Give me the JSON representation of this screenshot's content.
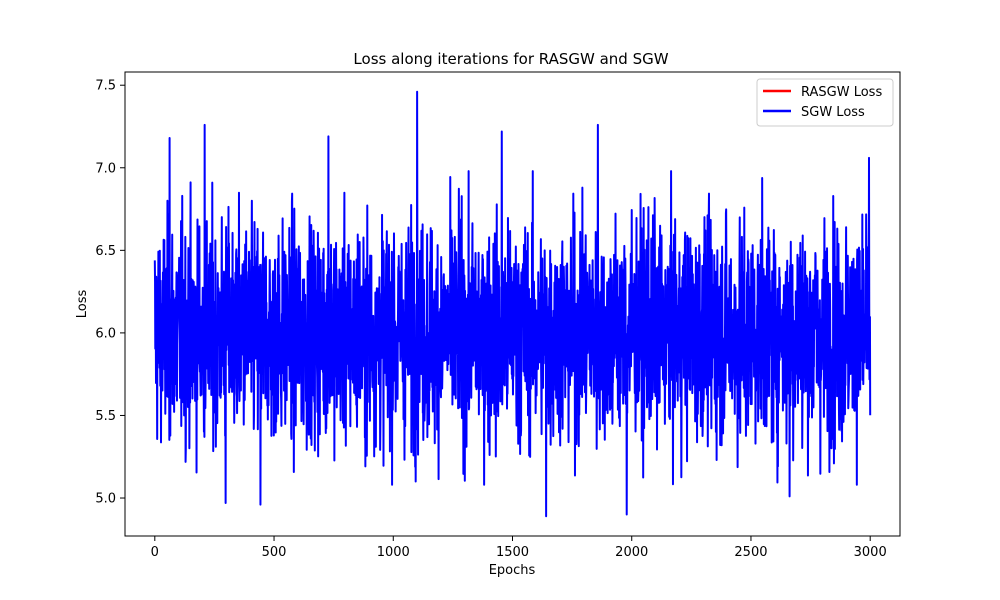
{
  "chart_data": {
    "type": "line",
    "title": "Loss along iterations for RASGW and SGW",
    "xlabel": "Epochs",
    "ylabel": "Loss",
    "xlim": [
      -125,
      3125
    ],
    "ylim": [
      4.77,
      7.58
    ],
    "xticks": [
      0,
      500,
      1000,
      1500,
      2000,
      2500,
      3000
    ],
    "yticks": [
      5.0,
      5.5,
      6.0,
      6.5,
      7.0,
      7.5
    ],
    "ytick_labels": [
      "5.0",
      "5.5",
      "6.0",
      "6.5",
      "7.0",
      "7.5"
    ],
    "grid": false,
    "legend_position": "top-right",
    "series": [
      {
        "name": "RASGW Loss",
        "color": "#ff0000",
        "x": [],
        "values": []
      },
      {
        "name": "SGW Loss",
        "color": "#0000ff",
        "x_start": 0,
        "x_end": 3000,
        "x_step": 1,
        "value_range": [
          4.89,
          7.46
        ],
        "mean": 6.0,
        "notable_values": [
          {
            "x": 62,
            "y": 7.18
          },
          {
            "x": 209,
            "y": 7.26
          },
          {
            "x": 728,
            "y": 7.19
          },
          {
            "x": 1100,
            "y": 7.46
          },
          {
            "x": 1455,
            "y": 7.22
          },
          {
            "x": 1858,
            "y": 7.26
          },
          {
            "x": 2995,
            "y": 7.06
          },
          {
            "x": 297,
            "y": 4.97
          },
          {
            "x": 443,
            "y": 4.96
          },
          {
            "x": 1641,
            "y": 4.89
          },
          {
            "x": 1979,
            "y": 4.9
          },
          {
            "x": 2662,
            "y": 5.01
          }
        ]
      }
    ]
  }
}
